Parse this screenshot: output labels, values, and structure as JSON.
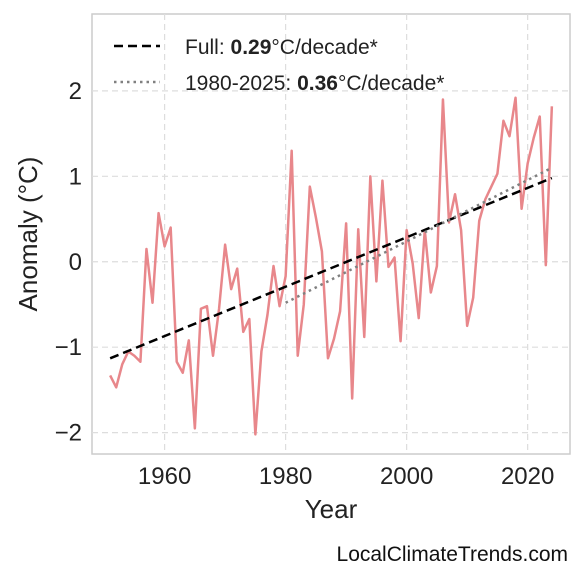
{
  "chart_data": {
    "type": "line",
    "xlabel": "Year",
    "ylabel": "Anomaly (°C)",
    "xlim": [
      1948,
      2027
    ],
    "ylim": [
      -2.25,
      2.9
    ],
    "x_ticks": [
      1960,
      1980,
      2000,
      2020
    ],
    "y_ticks": [
      -2,
      -1,
      0,
      1,
      2
    ],
    "y_tick_labels": [
      "−2",
      "−1",
      "0",
      "1",
      "2"
    ],
    "grid": true,
    "legend_position": "top-left",
    "series": [
      {
        "style": "line",
        "color": "#e8878b",
        "x": [
          1951,
          1952,
          1953,
          1954,
          1955,
          1956,
          1957,
          1958,
          1959,
          1960,
          1961,
          1962,
          1963,
          1964,
          1965,
          1966,
          1967,
          1968,
          1969,
          1970,
          1971,
          1972,
          1973,
          1974,
          1975,
          1976,
          1977,
          1978,
          1979,
          1980,
          1981,
          1982,
          1983,
          1984,
          1985,
          1986,
          1987,
          1988,
          1989,
          1990,
          1991,
          1992,
          1993,
          1994,
          1995,
          1996,
          1997,
          1998,
          1999,
          2000,
          2001,
          2002,
          2003,
          2004,
          2005,
          2006,
          2007,
          2008,
          2009,
          2010,
          2011,
          2012,
          2013,
          2014,
          2015,
          2016,
          2017,
          2018,
          2019,
          2020,
          2021,
          2022,
          2023,
          2024
        ],
        "y": [
          -1.33,
          -1.47,
          -1.2,
          -1.05,
          -1.1,
          -1.17,
          0.15,
          -0.48,
          0.57,
          0.18,
          0.4,
          -1.17,
          -1.3,
          -0.92,
          -1.95,
          -0.55,
          -0.52,
          -1.1,
          -0.55,
          0.2,
          -0.32,
          -0.08,
          -0.82,
          -0.67,
          -2.02,
          -1.05,
          -0.62,
          -0.05,
          -0.52,
          -0.17,
          1.3,
          -1.1,
          -0.5,
          0.88,
          0.52,
          0.12,
          -1.13,
          -0.9,
          -0.58,
          0.45,
          -1.6,
          0.38,
          -0.88,
          1.0,
          -0.23,
          0.95,
          -0.06,
          0.05,
          -0.93,
          0.37,
          -0.02,
          -0.66,
          0.37,
          -0.36,
          -0.05,
          1.9,
          0.46,
          0.79,
          0.37,
          -0.75,
          -0.42,
          0.48,
          0.73,
          0.88,
          1.03,
          1.65,
          1.47,
          1.92,
          0.62,
          1.15,
          1.45,
          1.7,
          -0.04,
          1.82
        ]
      },
      {
        "name": "Full",
        "style": "dashed",
        "color": "#000000",
        "x": [
          1951,
          2024
        ],
        "y": [
          -1.13,
          0.98
        ],
        "rate": "0.29",
        "unit": "°C/decade*"
      },
      {
        "name": "1980-2025",
        "style": "dotted",
        "color": "#808080",
        "x": [
          1980,
          2024
        ],
        "y": [
          -0.48,
          1.1
        ],
        "rate": "0.36",
        "unit": "°C/decade*"
      }
    ]
  },
  "legend": {
    "items": [
      {
        "label": "Full: ",
        "bold": "0.29",
        "suffix": "°C/decade*"
      },
      {
        "label": "1980-2025: ",
        "bold": "0.36",
        "suffix": "°C/decade*"
      }
    ]
  },
  "watermark": "LocalClimateTrends.com"
}
